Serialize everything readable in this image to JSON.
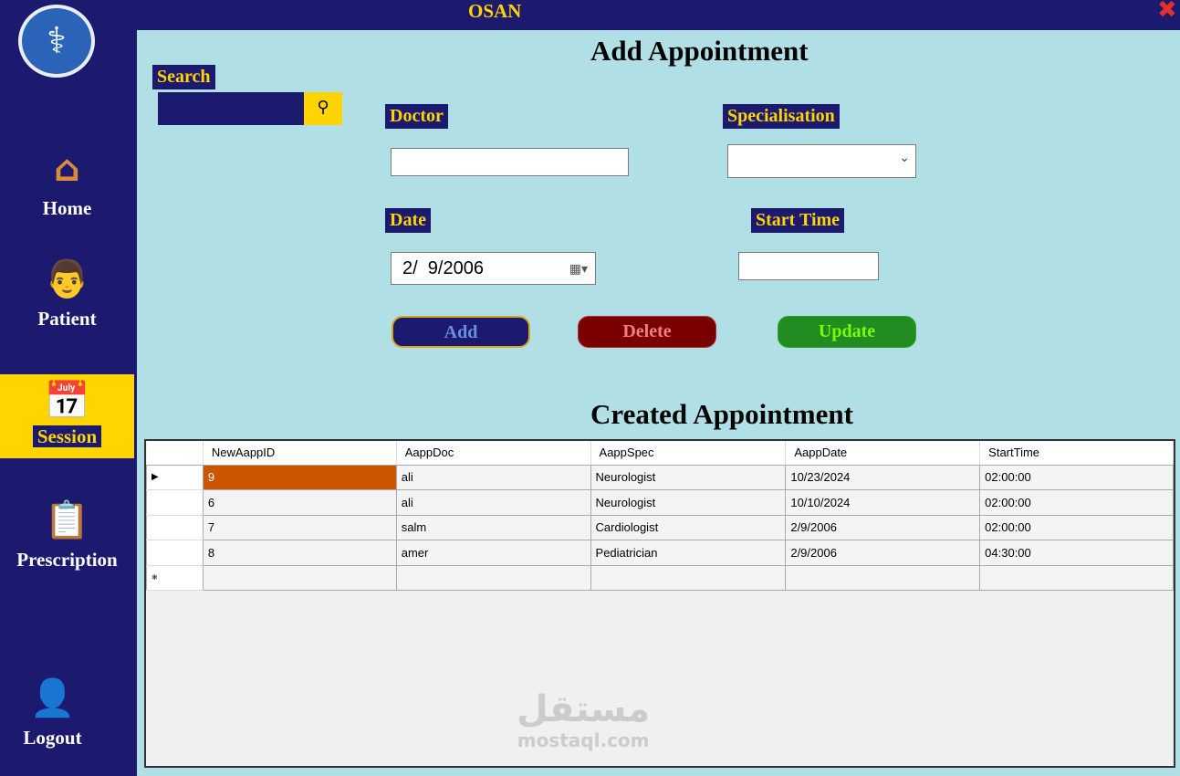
{
  "app": {
    "title": "OSAN",
    "close_icon": "close-icon"
  },
  "sidebar": {
    "items": [
      {
        "label": "Home",
        "icon": "home-icon"
      },
      {
        "label": "Patient",
        "icon": "doctor-icon"
      },
      {
        "label": "Session",
        "icon": "calendar-icon",
        "active": true
      },
      {
        "label": "Prescription",
        "icon": "prescription-icon"
      },
      {
        "label": "Logout",
        "icon": "logout-icon"
      }
    ]
  },
  "search": {
    "label": "Search",
    "value": ""
  },
  "form": {
    "title": "Add Appointment",
    "doctor_label": "Doctor",
    "doctor_value": "",
    "spec_label": "Specialisation",
    "spec_value": "",
    "date_label": "Date",
    "date_value": "2/  9/2006",
    "time_label": "Start Time",
    "time_value": ""
  },
  "buttons": {
    "add": "Add",
    "delete": "Delete",
    "update": "Update"
  },
  "colors": {
    "navy": "#1b1a6e",
    "yellow": "#ffd400",
    "background": "#b0dfe5",
    "add": "#1b1a6e",
    "delete": "#7a0000",
    "update": "#228b22"
  },
  "table": {
    "title": "Created Appointment",
    "columns": [
      "NewAappID",
      "AappDoc",
      "AappSpec",
      "AappDate",
      "StartTime"
    ],
    "rows": [
      [
        "9",
        "ali",
        "Neurologist",
        "10/23/2024",
        "02:00:00"
      ],
      [
        "6",
        "ali",
        "Neurologist",
        "10/10/2024",
        "02:00:00"
      ],
      [
        "7",
        "salm",
        "Cardiologist",
        "2/9/2006",
        "02:00:00"
      ],
      [
        "8",
        "amer",
        "Pediatrician",
        "2/9/2006",
        "04:30:00"
      ]
    ]
  },
  "watermark": {
    "arabic": "مستقل",
    "latin": "mostaql.com"
  }
}
